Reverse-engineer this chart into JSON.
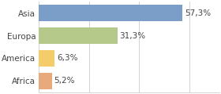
{
  "categories": [
    "Asia",
    "Europa",
    "America",
    "Africa"
  ],
  "values": [
    57.3,
    31.3,
    6.3,
    5.2
  ],
  "labels": [
    "57,3%",
    "31,3%",
    "6,3%",
    "5,2%"
  ],
  "bar_colors": [
    "#7b9ec8",
    "#b5c98a",
    "#f5cc6a",
    "#e8aa7a"
  ],
  "xlim": [
    0,
    72
  ],
  "background_color": "#ffffff",
  "bar_height": 0.72,
  "label_fontsize": 7.5,
  "tick_fontsize": 7.5,
  "grid_color": "#cccccc",
  "text_color": "#444444"
}
